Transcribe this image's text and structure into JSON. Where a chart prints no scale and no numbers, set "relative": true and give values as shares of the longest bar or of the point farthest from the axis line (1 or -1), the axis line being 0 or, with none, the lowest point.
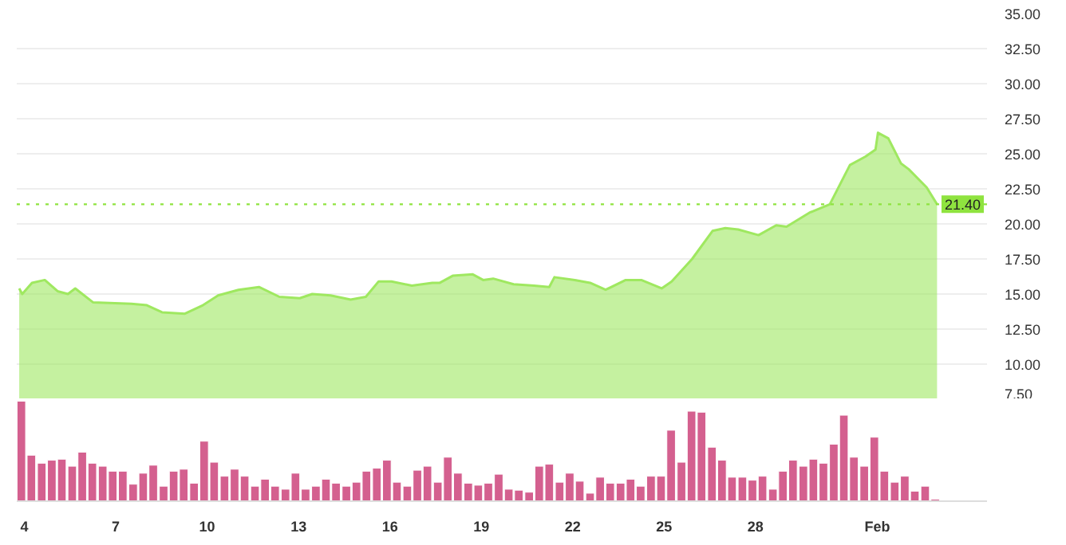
{
  "chart_data": [
    {
      "type": "area",
      "color": "#9fe860",
      "x": [
        3.83,
        3.93,
        4.25,
        4.67,
        5.09,
        5.43,
        5.67,
        6.26,
        7.51,
        8.02,
        8.52,
        9.27,
        9.86,
        10.36,
        11.03,
        11.7,
        12.37,
        13.04,
        13.45,
        14.05,
        14.71,
        15.21,
        15.63,
        16.05,
        16.72,
        17.39,
        17.64,
        18.06,
        18.72,
        19.06,
        19.39,
        20.06,
        20.73,
        21.23,
        21.4,
        22.07,
        22.57,
        23.08,
        23.74,
        24.25,
        24.92,
        25.25,
        25.92,
        26.59,
        27.01,
        27.43,
        28.1,
        28.68,
        29.02,
        29.77,
        30.44,
        31.1,
        31.61,
        31.94,
        32.02,
        32.36,
        32.78,
        33.03,
        33.62,
        33.96
      ],
      "values": [
        15.4,
        15.0,
        15.8,
        16.0,
        15.2,
        15.0,
        15.4,
        14.4,
        14.3,
        14.2,
        13.7,
        13.6,
        14.2,
        14.9,
        15.3,
        15.5,
        14.8,
        14.7,
        15.0,
        14.9,
        14.6,
        14.8,
        15.9,
        15.9,
        15.6,
        15.8,
        15.8,
        16.3,
        16.4,
        16.0,
        16.1,
        15.7,
        15.6,
        15.5,
        16.2,
        16.0,
        15.8,
        15.3,
        16.0,
        16.0,
        15.4,
        15.9,
        17.5,
        19.5,
        19.7,
        19.6,
        19.2,
        19.9,
        19.8,
        20.8,
        21.4,
        24.2,
        24.8,
        25.3,
        26.5,
        26.1,
        24.3,
        23.9,
        22.6,
        21.4
      ],
      "xlim": [
        3.75,
        35.6
      ],
      "tick_labels": "y",
      "ylim": [
        7.5,
        35.0
      ],
      "yticks": [
        {
          "value": 7.5,
          "label": "7.50"
        },
        {
          "value": 10,
          "label": "10.00"
        },
        {
          "value": 12.5,
          "label": "12.50"
        },
        {
          "value": 15,
          "label": "15.00"
        },
        {
          "value": 17.5,
          "label": "17.50"
        },
        {
          "value": 20,
          "label": "20.00"
        },
        {
          "value": 22.5,
          "label": "22.50"
        },
        {
          "value": 25,
          "label": "25.00"
        },
        {
          "value": 27.5,
          "label": "27.50"
        },
        {
          "value": 30,
          "label": "30.00"
        },
        {
          "value": 32.5,
          "label": "32.50"
        },
        {
          "value": 35,
          "label": "35.00"
        }
      ],
      "ref_lines": [
        {
          "axis": "y",
          "value": 21.4,
          "label": "21.40",
          "color": "#8fe33f",
          "line_style": "dotted"
        }
      ],
      "grid": "y"
    },
    {
      "type": "bar",
      "relative": true,
      "color": "#d4608f",
      "xlim": [
        3.75,
        35.6
      ],
      "xticks": [
        4,
        7,
        10,
        13,
        16,
        19,
        22,
        25,
        28,
        {
          "value": 32,
          "label": "Feb"
        }
      ],
      "x": [
        3.9,
        4.23,
        4.57,
        4.9,
        5.23,
        5.57,
        5.9,
        6.23,
        6.57,
        6.9,
        7.23,
        7.57,
        7.9,
        8.23,
        8.57,
        8.9,
        9.23,
        9.57,
        9.9,
        10.23,
        10.57,
        10.9,
        11.23,
        11.57,
        11.9,
        12.23,
        12.57,
        12.9,
        13.23,
        13.57,
        13.9,
        14.23,
        14.57,
        14.9,
        15.23,
        15.57,
        15.9,
        16.23,
        16.57,
        16.9,
        17.23,
        17.57,
        17.9,
        18.23,
        18.57,
        18.9,
        19.23,
        19.57,
        19.9,
        20.23,
        20.57,
        20.9,
        21.23,
        21.57,
        21.9,
        22.23,
        22.57,
        22.9,
        23.23,
        23.57,
        23.9,
        24.23,
        24.57,
        24.9,
        25.23,
        25.57,
        25.9,
        26.23,
        26.57,
        26.9,
        27.23,
        27.57,
        27.9,
        28.23,
        28.57,
        28.9,
        29.23,
        29.57,
        29.9,
        30.23,
        30.57,
        30.9,
        31.23,
        31.57,
        31.9,
        32.23,
        32.57,
        32.9,
        33.23,
        33.57,
        33.9
      ],
      "values": [
        1.0,
        0.46,
        0.38,
        0.41,
        0.42,
        0.35,
        0.49,
        0.38,
        0.35,
        0.3,
        0.3,
        0.17,
        0.28,
        0.36,
        0.15,
        0.3,
        0.32,
        0.18,
        0.6,
        0.39,
        0.25,
        0.32,
        0.25,
        0.15,
        0.22,
        0.15,
        0.12,
        0.28,
        0.12,
        0.15,
        0.22,
        0.18,
        0.15,
        0.19,
        0.3,
        0.33,
        0.41,
        0.19,
        0.15,
        0.31,
        0.35,
        0.19,
        0.44,
        0.28,
        0.18,
        0.16,
        0.18,
        0.27,
        0.12,
        0.11,
        0.09,
        0.35,
        0.37,
        0.19,
        0.28,
        0.2,
        0.08,
        0.24,
        0.18,
        0.18,
        0.22,
        0.15,
        0.25,
        0.25,
        0.71,
        0.39,
        0.9,
        0.89,
        0.54,
        0.41,
        0.24,
        0.24,
        0.21,
        0.25,
        0.12,
        0.3,
        0.41,
        0.35,
        0.42,
        0.38,
        0.57,
        0.86,
        0.44,
        0.35,
        0.64,
        0.3,
        0.19,
        0.25,
        0.1,
        0.15,
        0.02
      ]
    }
  ]
}
